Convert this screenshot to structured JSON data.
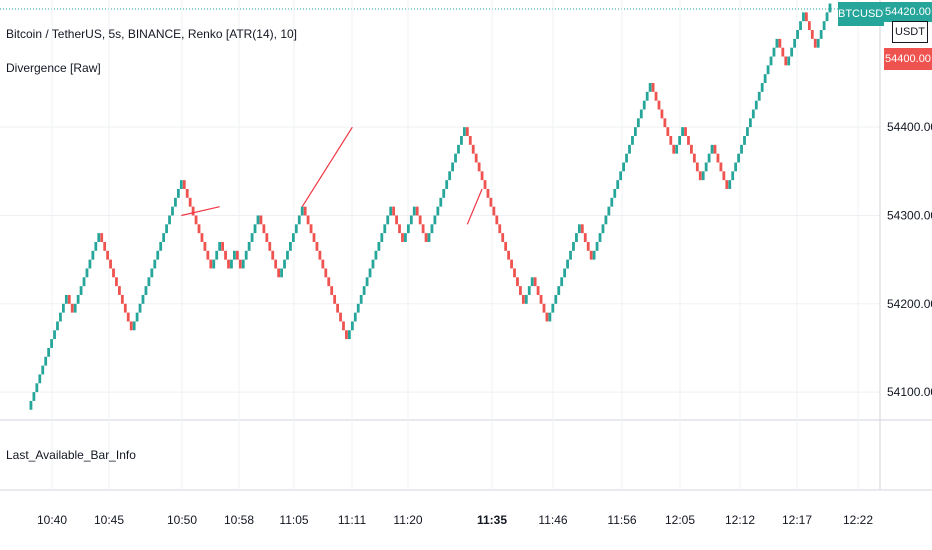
{
  "chart_header": {
    "symbol_line": "Bitcoin / TetherUS, 5s, BINANCE, Renko [ATR(14), 10]",
    "indicator_line": "Divergence [Raw]",
    "lower_pane_label": "Last_Available_Bar_Info"
  },
  "price_tags": {
    "symbol_tag": "BTCUSDT",
    "currency_tag": "USDT",
    "last_price": "54420.00",
    "prev_price": "54400.00"
  },
  "colors": {
    "up": "#26a69a",
    "down": "#ef5350",
    "divergence": "#f23645",
    "grid": "#eef0f3",
    "axis_text": "#131722",
    "tag_teal": "#26a69a",
    "tag_red": "#ef5350"
  },
  "chart_data": {
    "type": "line",
    "style": "renko",
    "brick_size": 10,
    "ylim": [
      54070,
      54420
    ],
    "y_ticks": [
      {
        "value": 54100,
        "label": "54100.00"
      },
      {
        "value": 54200,
        "label": "54200.00"
      },
      {
        "value": 54300,
        "label": "54300.00"
      },
      {
        "value": 54400,
        "label": "54400.00"
      }
    ],
    "x_ticks": [
      {
        "label": "10:40",
        "bold": false
      },
      {
        "label": "10:45",
        "bold": false
      },
      {
        "label": "10:50",
        "bold": false
      },
      {
        "label": "10:58",
        "bold": false
      },
      {
        "label": "11:05",
        "bold": false
      },
      {
        "label": "11:11",
        "bold": false
      },
      {
        "label": "11:20",
        "bold": false
      },
      {
        "label": "11:35",
        "bold": true
      },
      {
        "label": "11:46",
        "bold": false
      },
      {
        "label": "11:56",
        "bold": false
      },
      {
        "label": "12:05",
        "bold": false
      },
      {
        "label": "12:12",
        "bold": false
      },
      {
        "label": "12:17",
        "bold": false
      },
      {
        "label": "12:22",
        "bold": false
      }
    ],
    "swings": [
      {
        "price": 54080,
        "index": 0
      },
      {
        "price": 54210,
        "index": 13
      },
      {
        "price": 54190,
        "index": 15
      },
      {
        "price": 54280,
        "index": 24
      },
      {
        "price": 54170,
        "index": 35
      },
      {
        "price": 54340,
        "index": 52
      },
      {
        "price": 54240,
        "index": 62
      },
      {
        "price": 54270,
        "index": 65
      },
      {
        "price": 54240,
        "index": 68
      },
      {
        "price": 54260,
        "index": 70
      },
      {
        "price": 54240,
        "index": 72
      },
      {
        "price": 54300,
        "index": 78
      },
      {
        "price": 54230,
        "index": 85
      },
      {
        "price": 54310,
        "index": 93
      },
      {
        "price": 54160,
        "index": 108
      },
      {
        "price": 54310,
        "index": 123
      },
      {
        "price": 54270,
        "index": 127
      },
      {
        "price": 54310,
        "index": 131
      },
      {
        "price": 54270,
        "index": 135
      },
      {
        "price": 54400,
        "index": 148
      },
      {
        "price": 54240,
        "index": 164
      },
      {
        "price": 54200,
        "index": 168
      },
      {
        "price": 54230,
        "index": 171
      },
      {
        "price": 54200,
        "index": 174
      },
      {
        "price": 54180,
        "index": 176
      },
      {
        "price": 54290,
        "index": 187
      },
      {
        "price": 54250,
        "index": 191
      },
      {
        "price": 54340,
        "index": 200
      },
      {
        "price": 54450,
        "index": 211
      },
      {
        "price": 54370,
        "index": 219
      },
      {
        "price": 54400,
        "index": 222
      },
      {
        "price": 54340,
        "index": 228
      },
      {
        "price": 54380,
        "index": 232
      },
      {
        "price": 54330,
        "index": 237
      },
      {
        "price": 54500,
        "index": 254
      },
      {
        "price": 54470,
        "index": 257
      },
      {
        "price": 54530,
        "index": 263
      },
      {
        "price": 54490,
        "index": 267
      },
      {
        "price": 54540,
        "index": 272
      }
    ],
    "divergences": [
      {
        "from_index": 52,
        "from_price": 54300,
        "to_index": 65,
        "to_price": 54310
      },
      {
        "from_index": 93,
        "from_price": 54310,
        "to_index": 110,
        "to_price": 54400
      },
      {
        "from_index": 149,
        "from_price": 54290,
        "to_index": 154,
        "to_price": 54330
      }
    ]
  }
}
